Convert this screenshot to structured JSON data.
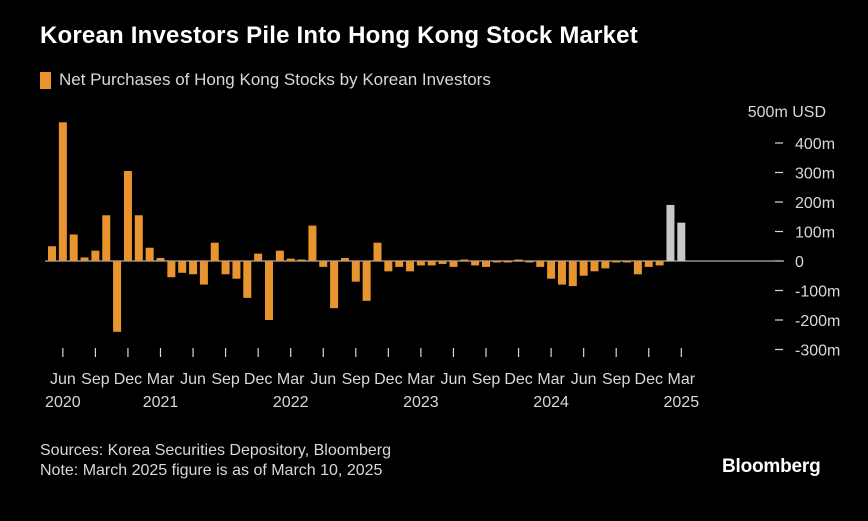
{
  "title": "Korean Investors Pile Into Hong Kong Stock Market",
  "colors": {
    "bar": "#e8952f",
    "bar_partial": "#c8c8c8",
    "background": "#000000",
    "text": "#ffffff",
    "axis_text": "#d8d8d8"
  },
  "chart_data": {
    "type": "bar",
    "title": "Korean Investors Pile Into Hong Kong Stock Market",
    "legend": "Net Purchases of Hong Kong Stocks by Korean Investors",
    "unit_label": "500m USD",
    "ylim": [
      -300,
      500
    ],
    "yticks": [
      400,
      300,
      200,
      100,
      0,
      -100,
      -200,
      -300
    ],
    "ytick_labels": [
      "400m",
      "300m",
      "200m",
      "100m",
      "0",
      "-100m",
      "-200m",
      "-300m"
    ],
    "x_month_labels": [
      "Jun",
      "Sep",
      "Dec",
      "Mar",
      "Jun",
      "Sep",
      "Dec",
      "Mar",
      "Jun",
      "Sep",
      "Dec",
      "Mar",
      "Jun",
      "Sep",
      "Dec",
      "Mar",
      "Jun",
      "Sep",
      "Dec",
      "Mar"
    ],
    "x_year_labels": [
      "2020",
      "2021",
      "2022",
      "2023",
      "2024",
      "2025"
    ],
    "categories": [
      "2020-05",
      "2020-06",
      "2020-07",
      "2020-08",
      "2020-09",
      "2020-10",
      "2020-11",
      "2020-12",
      "2021-01",
      "2021-02",
      "2021-03",
      "2021-04",
      "2021-05",
      "2021-06",
      "2021-07",
      "2021-08",
      "2021-09",
      "2021-10",
      "2021-11",
      "2021-12",
      "2022-01",
      "2022-02",
      "2022-03",
      "2022-04",
      "2022-05",
      "2022-06",
      "2022-07",
      "2022-08",
      "2022-09",
      "2022-10",
      "2022-11",
      "2022-12",
      "2023-01",
      "2023-02",
      "2023-03",
      "2023-04",
      "2023-05",
      "2023-06",
      "2023-07",
      "2023-08",
      "2023-09",
      "2023-10",
      "2023-11",
      "2023-12",
      "2024-01",
      "2024-02",
      "2024-03",
      "2024-04",
      "2024-05",
      "2024-06",
      "2024-07",
      "2024-08",
      "2024-09",
      "2024-10",
      "2024-11",
      "2024-12",
      "2025-01",
      "2025-02",
      "2025-03"
    ],
    "values": [
      50,
      470,
      90,
      12,
      35,
      155,
      -240,
      305,
      155,
      45,
      10,
      -55,
      -40,
      -45,
      -80,
      62,
      -45,
      -60,
      -125,
      25,
      -200,
      35,
      8,
      5,
      120,
      -20,
      -160,
      10,
      -70,
      -135,
      62,
      -35,
      -20,
      -35,
      -15,
      -15,
      -10,
      -20,
      5,
      -15,
      -20,
      -5,
      -5,
      5,
      -5,
      -20,
      -60,
      -80,
      -85,
      -50,
      -35,
      -25,
      -5,
      -5,
      -45,
      -20,
      -15,
      190,
      130
    ],
    "partial_from_index": 57,
    "partial_note_index": 58
  },
  "footer": {
    "sources": "Sources: Korea Securities Depository, Bloomberg",
    "note": "Note: March 2025 figure is as of March 10, 2025"
  },
  "brand": "Bloomberg"
}
